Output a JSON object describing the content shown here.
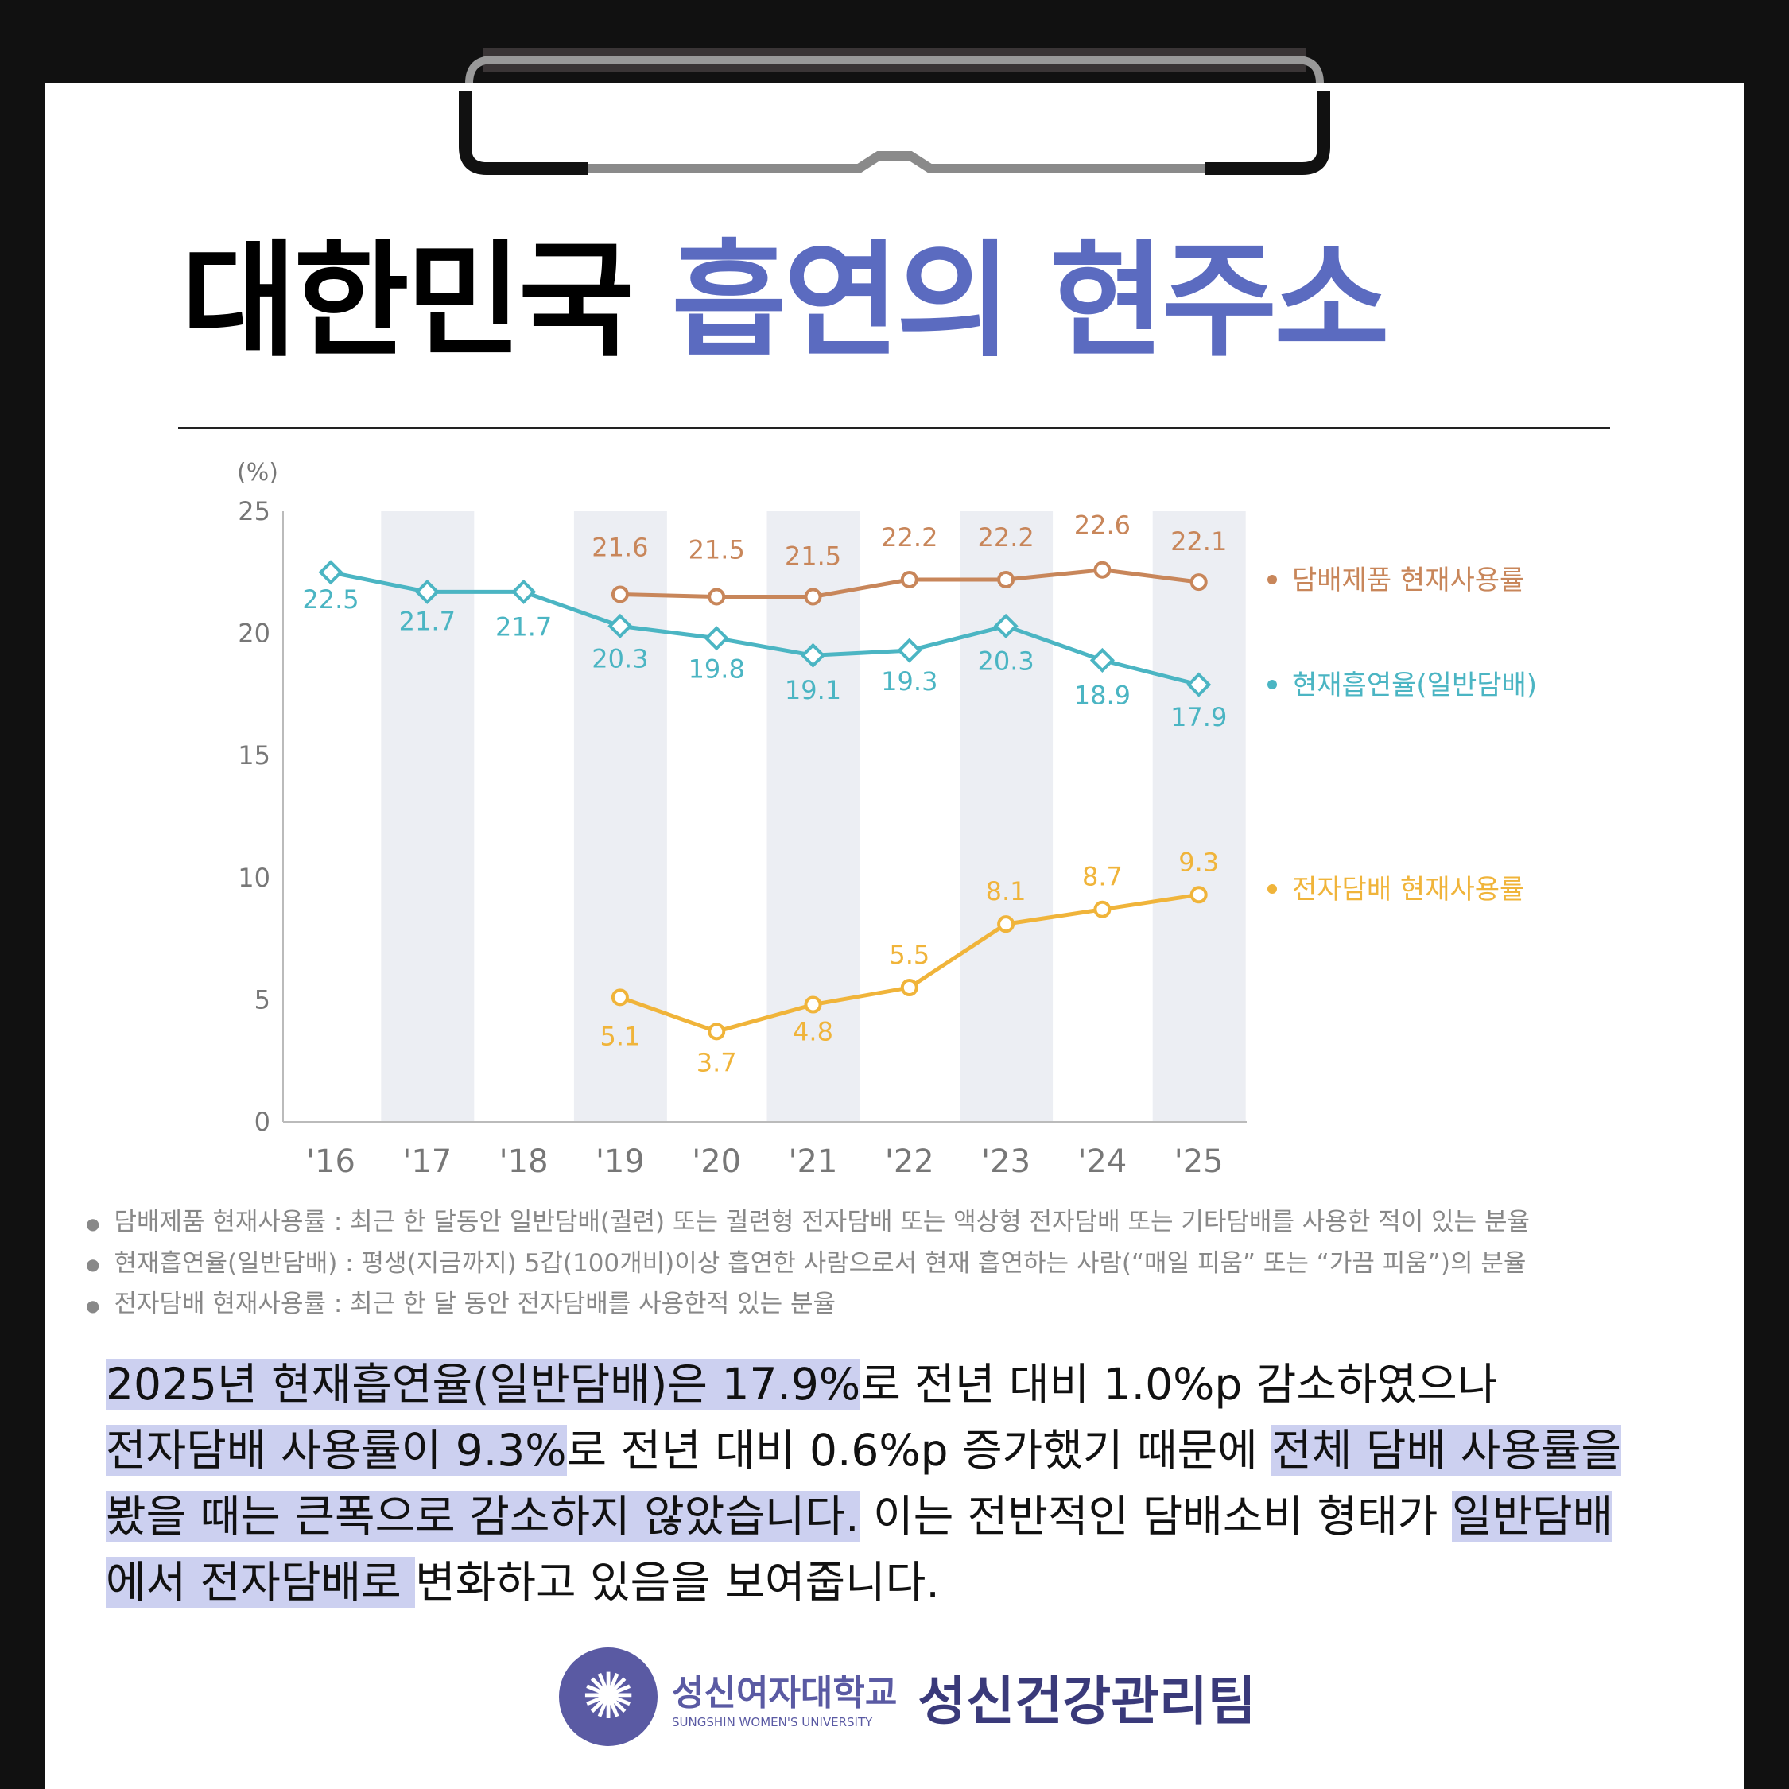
{
  "title": {
    "part1": "대한민국",
    "part2": "흡연의 현주소"
  },
  "chart_data": {
    "type": "line",
    "ylabel": "(%)",
    "ylim": [
      0,
      25
    ],
    "yticks": [
      "0",
      "5",
      "10",
      "15",
      "20",
      "25"
    ],
    "categories": [
      "'16",
      "'17",
      "'18",
      "'19",
      "'20",
      "'21",
      "'22",
      "'23",
      "'24",
      "'25"
    ],
    "series": [
      {
        "name": "담배제품 현재사용률",
        "color": "#c8865a",
        "values": [
          null,
          null,
          null,
          21.6,
          21.5,
          21.5,
          22.2,
          22.2,
          22.6,
          22.1
        ]
      },
      {
        "name": "현재흡연율(일반담배)",
        "color": "#4bb5c3",
        "values": [
          22.5,
          21.7,
          21.7,
          20.3,
          19.8,
          19.1,
          19.3,
          20.3,
          18.9,
          17.9
        ]
      },
      {
        "name": "전자담배 현재사용률",
        "color": "#f0b43a",
        "values": [
          null,
          null,
          null,
          5.1,
          3.7,
          4.8,
          5.5,
          8.1,
          8.7,
          9.3
        ]
      }
    ],
    "legend": "right"
  },
  "notes": [
    "담배제품 현재사용률 : 최근 한 달동안 일반담배(궐련) 또는 궐련형 전자담배 또는 액상형 전자담배 또는 기타담배를 사용한 적이 있는 분율",
    "현재흡연율(일반담배) : 평생(지금까지) 5갑(100개비)이상 흡연한 사람으로서 현재 흡연하는 사람(“매일 피움” 또는 “가끔 피움”)의 분율",
    "전자담배 현재사용률 : 최근 한 달 동안 전자담배를 사용한적 있는 분율"
  ],
  "paragraph": {
    "l1a": " 2025년 현재흡연율(일반담배)은 17.9%",
    "l1b": "로 전년 대비 1.0%p 감소하였으나",
    "l2a": "전자담배 사용률이 9.3%",
    "l2b": "로 전년 대비 0.6%p 증가했기 때문에 ",
    "l2c": "전체 담배 사용률을",
    "l3a": "봤을 때는 큰폭으로 감소하지 않았습니다.",
    "l3b": " 이는 전반적인 담배소비 형태가 ",
    "l3c": "일반담배",
    "l4a": "에서 전자담배로 ",
    "l4b": "변화하고 있음을 보여줍니다."
  },
  "footer": {
    "university": "성신여자대학교",
    "university_en": "SUNGSHIN WOMEN'S UNIVERSITY",
    "team": "성신건강관리팀"
  }
}
